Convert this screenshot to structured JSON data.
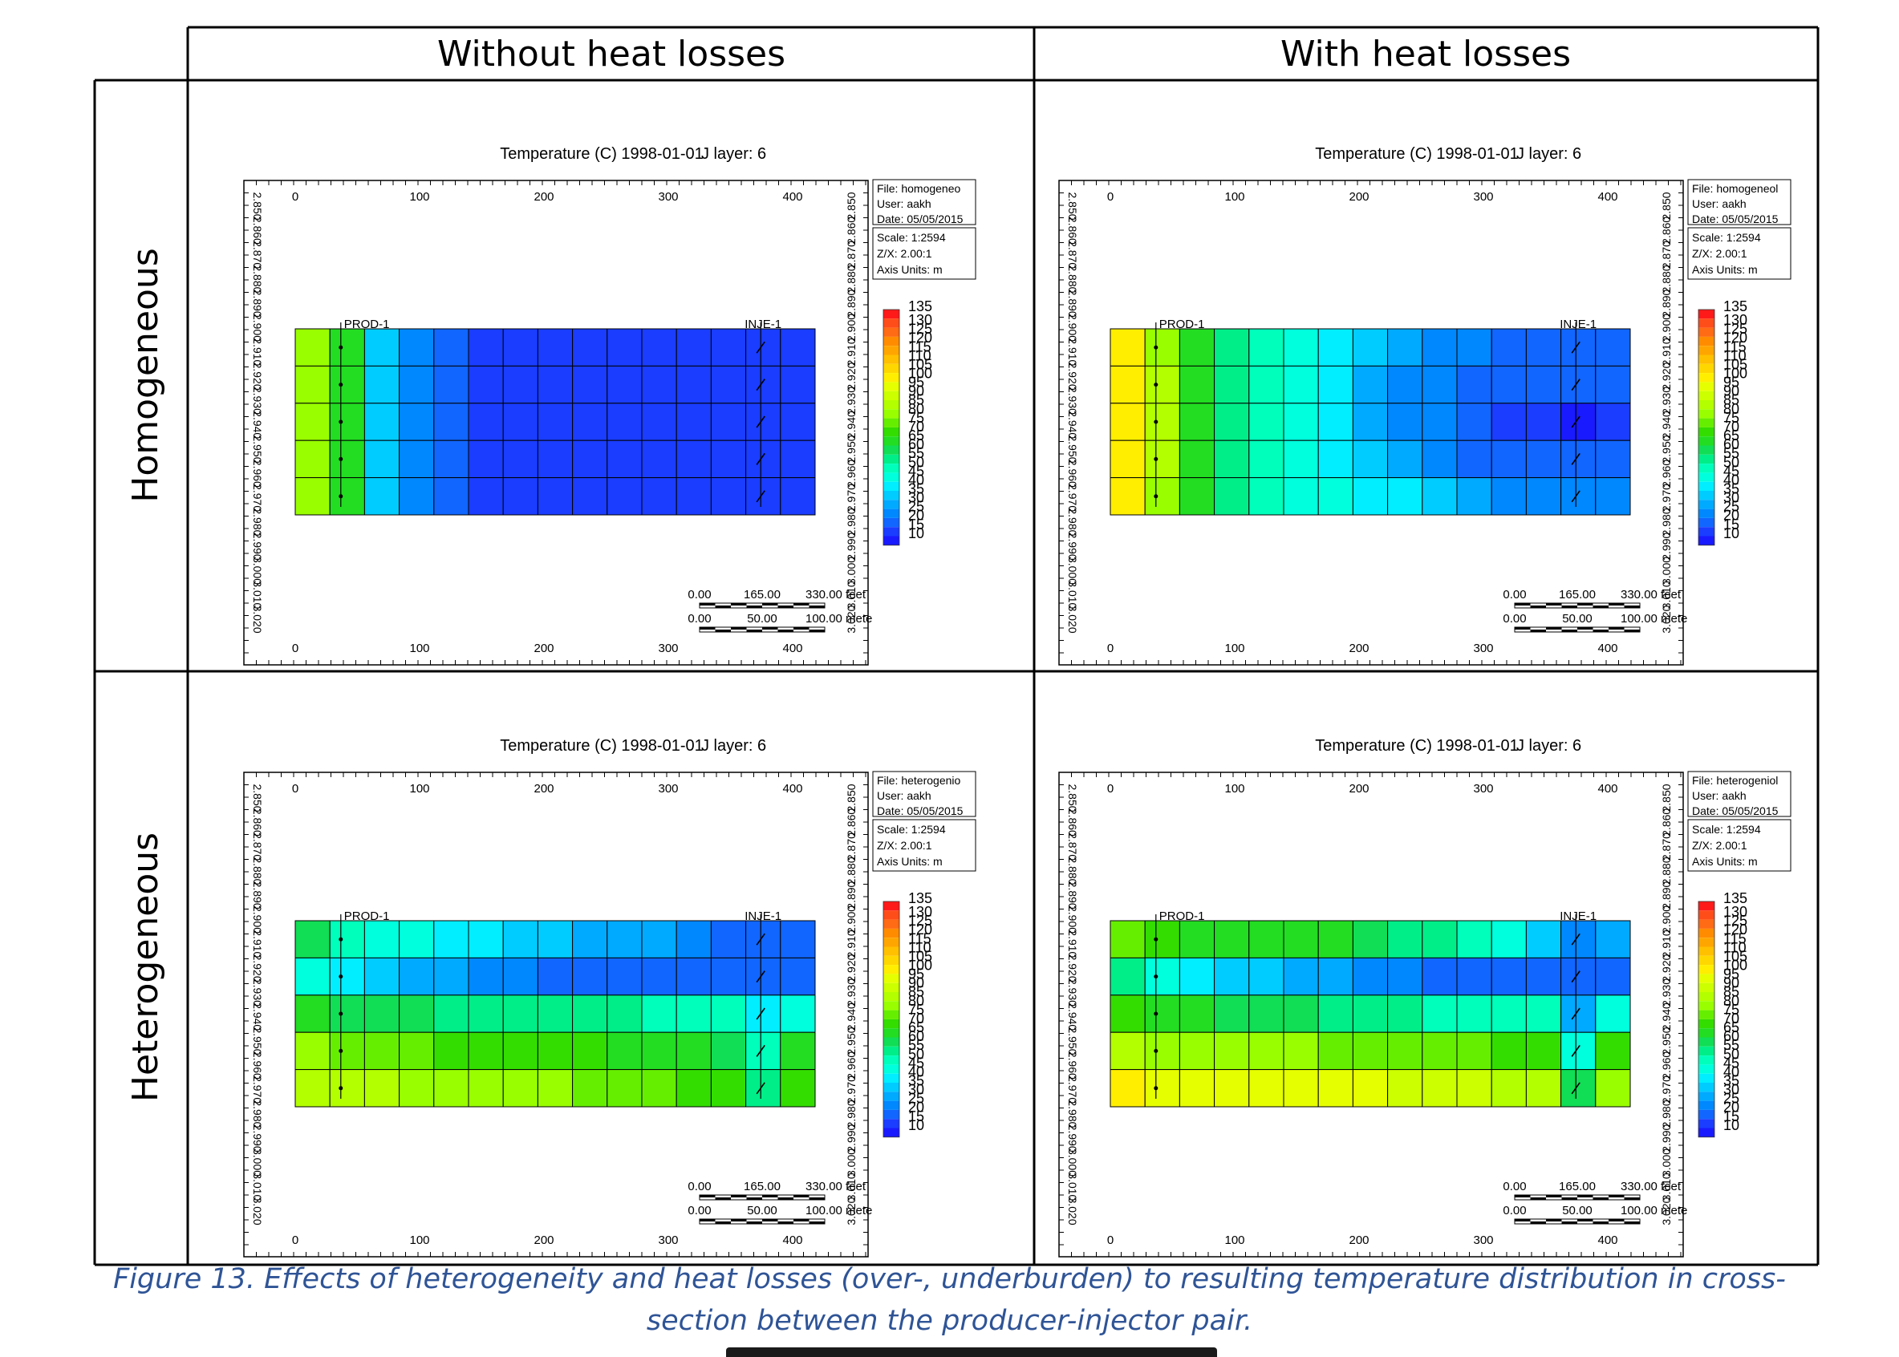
{
  "column_headers": [
    "Without heat losses",
    "With heat losses"
  ],
  "row_headers": [
    "Homogeneous",
    "Heterogeneous"
  ],
  "caption": {
    "line1": "Figure 13.  Effects of heterogeneity and heat losses (over-, underburden) to resulting temperature distribution in cross-",
    "line2": "section between the producer-injector pair."
  },
  "chart_data": [
    {
      "type": "heatmap",
      "panel": "homogeneous-without-heat-losses",
      "title": "Temperature (C) 1998-01-01",
      "layer_label": "J layer: 6",
      "x_ticks": [
        "0",
        "100",
        "200",
        "300",
        "400"
      ],
      "y_ticks": [
        "2.850",
        "2.860",
        "2.870",
        "2.880",
        "2.890",
        "2.900",
        "2.910",
        "2.920",
        "2.930",
        "2.940",
        "2.950",
        "2.960",
        "2.970",
        "2.980",
        "2.990",
        "3.000",
        "3.010",
        "3.020"
      ],
      "wells": [
        "PROD-1",
        "INJE-1"
      ],
      "info": {
        "file": "File: homogeneo",
        "user": "User: aakh",
        "date": "Date: 05/05/2015",
        "scale": "Scale: 1:2594",
        "zx": "Z/X: 2.00:1",
        "units": "Axis Units: m"
      },
      "scalebar": {
        "feet": [
          "0.00",
          "165.00",
          "330.00 feet"
        ],
        "meters": [
          "0.00",
          "50.00",
          "100.00 mete"
        ]
      },
      "legend_values": [
        135,
        130,
        125,
        120,
        115,
        110,
        105,
        100,
        95,
        90,
        85,
        80,
        75,
        70,
        65,
        60,
        55,
        50,
        45,
        40,
        35,
        30,
        25,
        20,
        15,
        10
      ],
      "grid": [
        [
          80,
          65,
          35,
          25,
          20,
          15,
          15,
          15,
          15,
          15,
          15,
          15,
          15,
          15,
          15
        ],
        [
          80,
          65,
          35,
          25,
          20,
          15,
          15,
          15,
          15,
          15,
          15,
          15,
          15,
          15,
          15
        ],
        [
          80,
          65,
          35,
          25,
          20,
          15,
          15,
          15,
          15,
          15,
          15,
          15,
          15,
          15,
          15
        ],
        [
          80,
          65,
          35,
          25,
          20,
          15,
          15,
          15,
          15,
          15,
          15,
          15,
          15,
          15,
          15
        ],
        [
          80,
          65,
          35,
          25,
          20,
          15,
          15,
          15,
          15,
          15,
          15,
          15,
          15,
          15,
          15
        ]
      ]
    },
    {
      "type": "heatmap",
      "panel": "homogeneous-with-heat-losses",
      "title": "Temperature (C) 1998-01-01",
      "layer_label": "J layer: 6",
      "x_ticks": [
        "0",
        "100",
        "200",
        "300",
        "400"
      ],
      "y_ticks": [
        "2.850",
        "2.860",
        "2.870",
        "2.880",
        "2.890",
        "2.900",
        "2.910",
        "2.920",
        "2.930",
        "2.940",
        "2.950",
        "2.960",
        "2.970",
        "2.980",
        "2.990",
        "3.000",
        "3.010",
        "3.020"
      ],
      "wells": [
        "PROD-1",
        "INJE-1"
      ],
      "info": {
        "file": "File: homogeneol",
        "user": "User: aakh",
        "date": "Date: 05/05/2015",
        "scale": "Scale: 1:2594",
        "zx": "Z/X: 2.00:1",
        "units": "Axis Units: m"
      },
      "scalebar": {
        "feet": [
          "0.00",
          "165.00",
          "330.00 feet"
        ],
        "meters": [
          "0.00",
          "50.00",
          "100.00 mete"
        ]
      },
      "legend_values": [
        135,
        130,
        125,
        120,
        115,
        110,
        105,
        100,
        95,
        90,
        85,
        80,
        75,
        70,
        65,
        60,
        55,
        50,
        45,
        40,
        35,
        30,
        25,
        20,
        15,
        10
      ],
      "grid": [
        [
          100,
          80,
          65,
          55,
          50,
          45,
          40,
          35,
          30,
          25,
          25,
          20,
          20,
          20,
          20
        ],
        [
          100,
          85,
          65,
          55,
          50,
          45,
          40,
          30,
          25,
          25,
          20,
          20,
          20,
          20,
          20
        ],
        [
          100,
          85,
          65,
          55,
          50,
          45,
          40,
          30,
          25,
          25,
          20,
          15,
          15,
          10,
          15
        ],
        [
          100,
          85,
          65,
          55,
          50,
          45,
          40,
          35,
          30,
          25,
          20,
          20,
          20,
          20,
          20
        ],
        [
          100,
          80,
          65,
          55,
          50,
          45,
          45,
          40,
          40,
          35,
          30,
          25,
          25,
          25,
          25
        ]
      ]
    },
    {
      "type": "heatmap",
      "panel": "heterogeneous-without-heat-losses",
      "title": "Temperature (C) 1998-01-01",
      "layer_label": "J layer: 6",
      "x_ticks": [
        "0",
        "100",
        "200",
        "300",
        "400"
      ],
      "y_ticks": [
        "2.850",
        "2.860",
        "2.870",
        "2.880",
        "2.890",
        "2.900",
        "2.910",
        "2.920",
        "2.930",
        "2.940",
        "2.950",
        "2.960",
        "2.970",
        "2.980",
        "2.990",
        "3.000",
        "3.010",
        "3.020"
      ],
      "wells": [
        "PROD-1",
        "INJE-1"
      ],
      "info": {
        "file": "File: heterogenio",
        "user": "User: aakh",
        "date": "Date: 05/05/2015",
        "scale": "Scale: 1:2594",
        "zx": "Z/X: 2.00:1",
        "units": "Axis Units: m"
      },
      "scalebar": {
        "feet": [
          "0.00",
          "165.00",
          "330.00 feet"
        ],
        "meters": [
          "0.00",
          "50.00",
          "100.00 mete"
        ]
      },
      "legend_values": [
        135,
        130,
        125,
        120,
        115,
        110,
        105,
        100,
        95,
        90,
        85,
        80,
        75,
        70,
        65,
        60,
        55,
        50,
        45,
        40,
        35,
        30,
        25,
        20,
        15,
        10
      ],
      "grid": [
        [
          60,
          50,
          45,
          45,
          40,
          40,
          35,
          35,
          30,
          30,
          30,
          25,
          20,
          20,
          20
        ],
        [
          45,
          40,
          35,
          30,
          30,
          25,
          25,
          20,
          20,
          20,
          20,
          20,
          20,
          20,
          20
        ],
        [
          65,
          60,
          60,
          60,
          55,
          55,
          55,
          55,
          55,
          55,
          50,
          50,
          50,
          40,
          45
        ],
        [
          80,
          75,
          75,
          75,
          70,
          70,
          70,
          70,
          70,
          65,
          65,
          65,
          60,
          50,
          65
        ],
        [
          85,
          85,
          85,
          80,
          80,
          80,
          80,
          80,
          75,
          75,
          75,
          70,
          70,
          55,
          70
        ]
      ]
    },
    {
      "type": "heatmap",
      "panel": "heterogeneous-with-heat-losses",
      "title": "Temperature (C) 1998-01-01",
      "layer_label": "J layer: 6",
      "x_ticks": [
        "0",
        "100",
        "200",
        "300",
        "400"
      ],
      "y_ticks": [
        "2.850",
        "2.860",
        "2.870",
        "2.880",
        "2.890",
        "2.900",
        "2.910",
        "2.920",
        "2.930",
        "2.940",
        "2.950",
        "2.960",
        "2.970",
        "2.980",
        "2.990",
        "3.000",
        "3.010",
        "3.020"
      ],
      "wells": [
        "PROD-1",
        "INJE-1"
      ],
      "info": {
        "file": "File: heterogeniol",
        "user": "User: aakh",
        "date": "Date: 05/05/2015",
        "scale": "Scale: 1:2594",
        "zx": "Z/X: 2.00:1",
        "units": "Axis Units: m"
      },
      "scalebar": {
        "feet": [
          "0.00",
          "165.00",
          "330.00 feet"
        ],
        "meters": [
          "0.00",
          "50.00",
          "100.00 mete"
        ]
      },
      "legend_values": [
        135,
        130,
        125,
        120,
        115,
        110,
        105,
        100,
        95,
        90,
        85,
        80,
        75,
        70,
        65,
        60,
        55,
        50,
        45,
        40,
        35,
        30,
        25,
        20,
        15,
        10
      ],
      "grid": [
        [
          75,
          70,
          65,
          65,
          65,
          65,
          65,
          60,
          55,
          55,
          50,
          45,
          35,
          25,
          30
        ],
        [
          55,
          45,
          40,
          35,
          35,
          30,
          30,
          25,
          25,
          20,
          20,
          20,
          20,
          20,
          20
        ],
        [
          70,
          65,
          65,
          60,
          60,
          60,
          55,
          55,
          55,
          50,
          50,
          50,
          50,
          30,
          45
        ],
        [
          85,
          80,
          80,
          80,
          80,
          80,
          75,
          75,
          75,
          75,
          75,
          70,
          70,
          45,
          70
        ],
        [
          100,
          95,
          95,
          95,
          95,
          95,
          95,
          95,
          90,
          90,
          90,
          85,
          85,
          60,
          80
        ]
      ]
    }
  ]
}
